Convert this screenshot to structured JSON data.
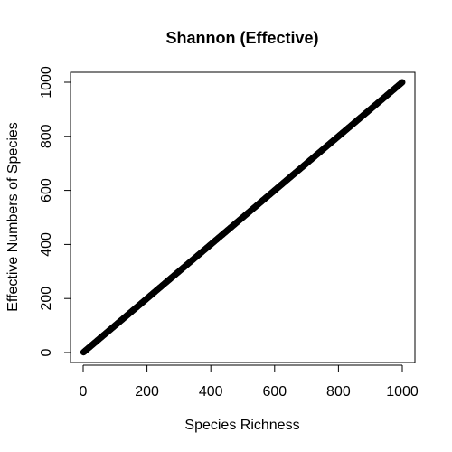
{
  "chart_data": {
    "type": "scatter",
    "title": "Shannon (Effective)",
    "xlabel": "Species Richness",
    "ylabel": "Effective Numbers of Species",
    "xlim": [
      0,
      1000
    ],
    "ylim": [
      0,
      1000
    ],
    "x_ticks": [
      0,
      200,
      400,
      600,
      800,
      1000
    ],
    "y_ticks": [
      0,
      200,
      400,
      600,
      800,
      1000
    ],
    "x_tick_labels": [
      "0",
      "200",
      "400",
      "600",
      "800",
      "1000"
    ],
    "y_tick_labels": [
      "0",
      "200",
      "400",
      "600",
      "800",
      "1000"
    ],
    "series": [
      {
        "marker": "open-circle",
        "color": "#000000",
        "x_range": [
          1,
          1000
        ],
        "y_equals_x": true
      }
    ],
    "grid": false,
    "legend": "none"
  }
}
